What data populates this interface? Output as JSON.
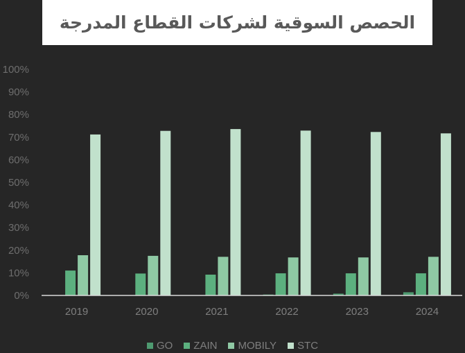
{
  "title": "الحصص السوقية لشركات القطاع المدرجة",
  "chart_data": {
    "type": "bar",
    "title": "الحصص السوقية لشركات القطاع المدرجة",
    "categories": [
      "2019",
      "2020",
      "2021",
      "2022",
      "2023",
      "2024"
    ],
    "series": [
      {
        "name": "GO",
        "color": "#4e9a70",
        "values": [
          0.0,
          0.0,
          0.0,
          0.4,
          0.8,
          1.4
        ]
      },
      {
        "name": "ZAIN",
        "color": "#5cb07f",
        "values": [
          11.0,
          9.7,
          9.2,
          9.8,
          9.8,
          9.8
        ]
      },
      {
        "name": "MOBILY",
        "color": "#8fc9a4",
        "values": [
          17.8,
          17.5,
          17.1,
          16.8,
          16.8,
          17.1
        ]
      },
      {
        "name": "STC",
        "color": "#c1e1cc",
        "values": [
          71.2,
          72.8,
          73.6,
          72.9,
          72.3,
          71.7
        ]
      }
    ],
    "ylim": [
      0,
      100
    ],
    "yticks": [
      "0%",
      "10%",
      "20%",
      "30%",
      "40%",
      "50%",
      "60%",
      "70%",
      "80%",
      "90%",
      "100%"
    ],
    "grid": false,
    "legend": "bottom",
    "xlabel": "",
    "ylabel": ""
  }
}
